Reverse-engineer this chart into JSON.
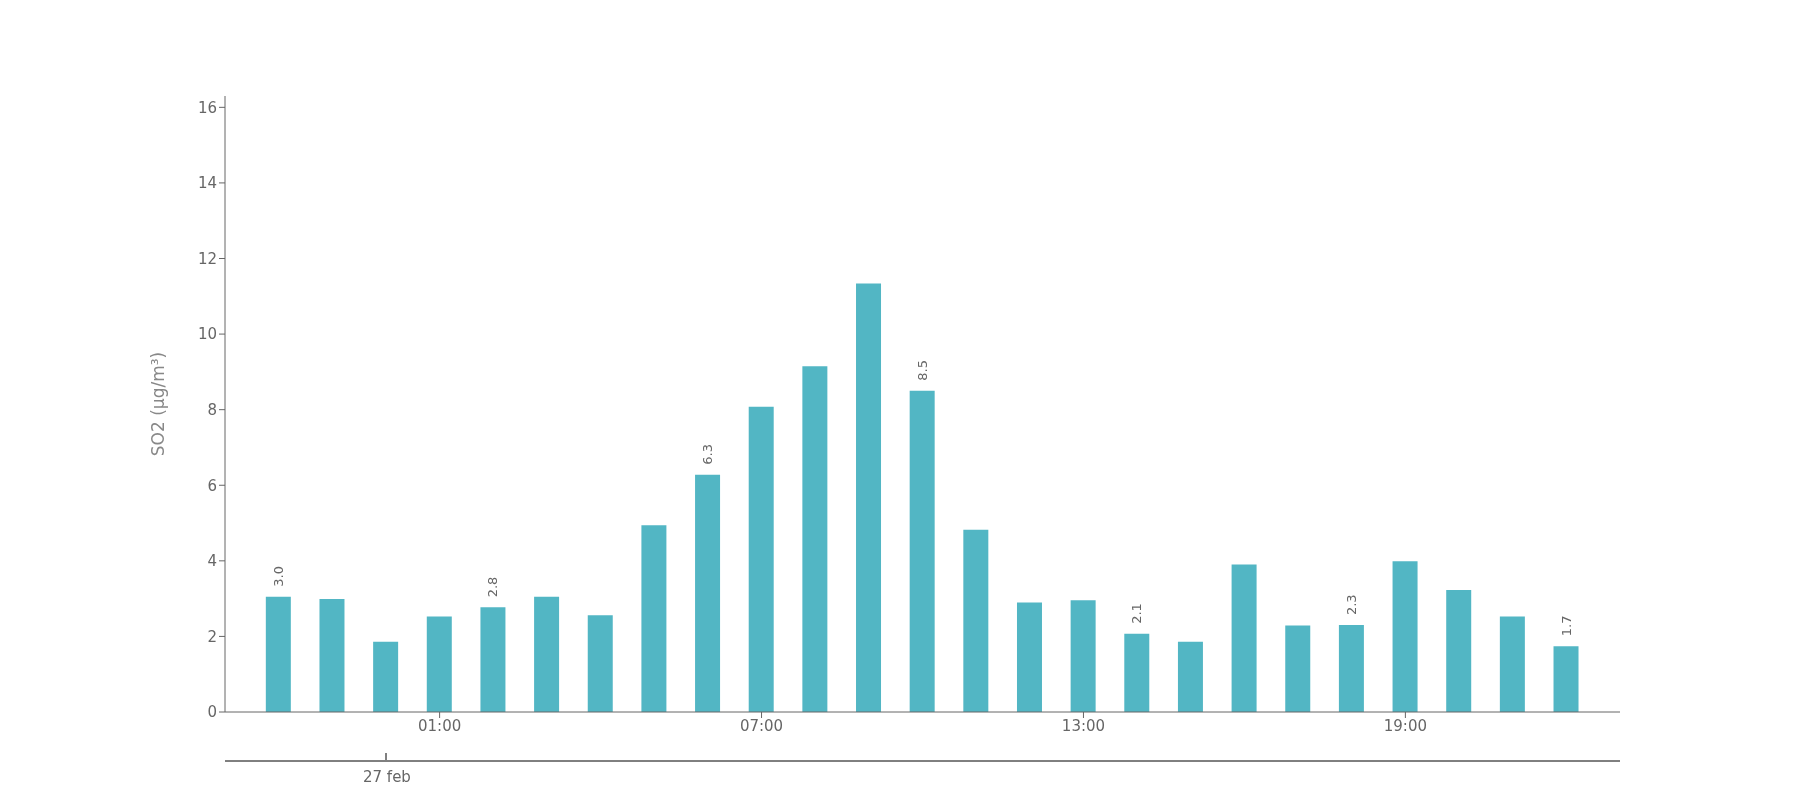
{
  "chart_data": {
    "type": "bar",
    "ylabel": "SO2 (μg/m³)",
    "color": "#52b6c4",
    "x": [
      -2,
      -1,
      0,
      1,
      2,
      3,
      4,
      5,
      6,
      7,
      8,
      9,
      10,
      11,
      12,
      13,
      14,
      15,
      16,
      17,
      18,
      19,
      20,
      21,
      22
    ],
    "values": [
      3.05,
      2.99,
      1.86,
      2.53,
      2.77,
      3.05,
      2.56,
      4.94,
      6.28,
      8.08,
      9.15,
      11.34,
      8.5,
      4.82,
      2.9,
      2.96,
      2.07,
      1.86,
      3.9,
      2.29,
      2.3,
      3.99,
      3.23,
      2.53,
      1.74
    ],
    "value_labels": [
      "3.0",
      null,
      null,
      null,
      "2.8",
      null,
      null,
      null,
      "6.3",
      null,
      null,
      null,
      "8.5",
      null,
      null,
      null,
      "2.1",
      null,
      null,
      null,
      "2.3",
      null,
      null,
      null,
      "1.7"
    ],
    "xlim": [
      -3,
      23
    ],
    "xticks": [
      {
        "value": 1,
        "label": "01:00"
      },
      {
        "value": 7,
        "label": "07:00"
      },
      {
        "value": 13,
        "label": "13:00"
      },
      {
        "value": 19,
        "label": "19:00"
      }
    ],
    "annotations": [
      "27 feb"
    ],
    "ylim": [
      0,
      16.3
    ],
    "yticks": [
      0,
      2,
      4,
      6,
      8,
      10,
      12,
      14,
      16
    ],
    "grid": false,
    "legend": false
  }
}
